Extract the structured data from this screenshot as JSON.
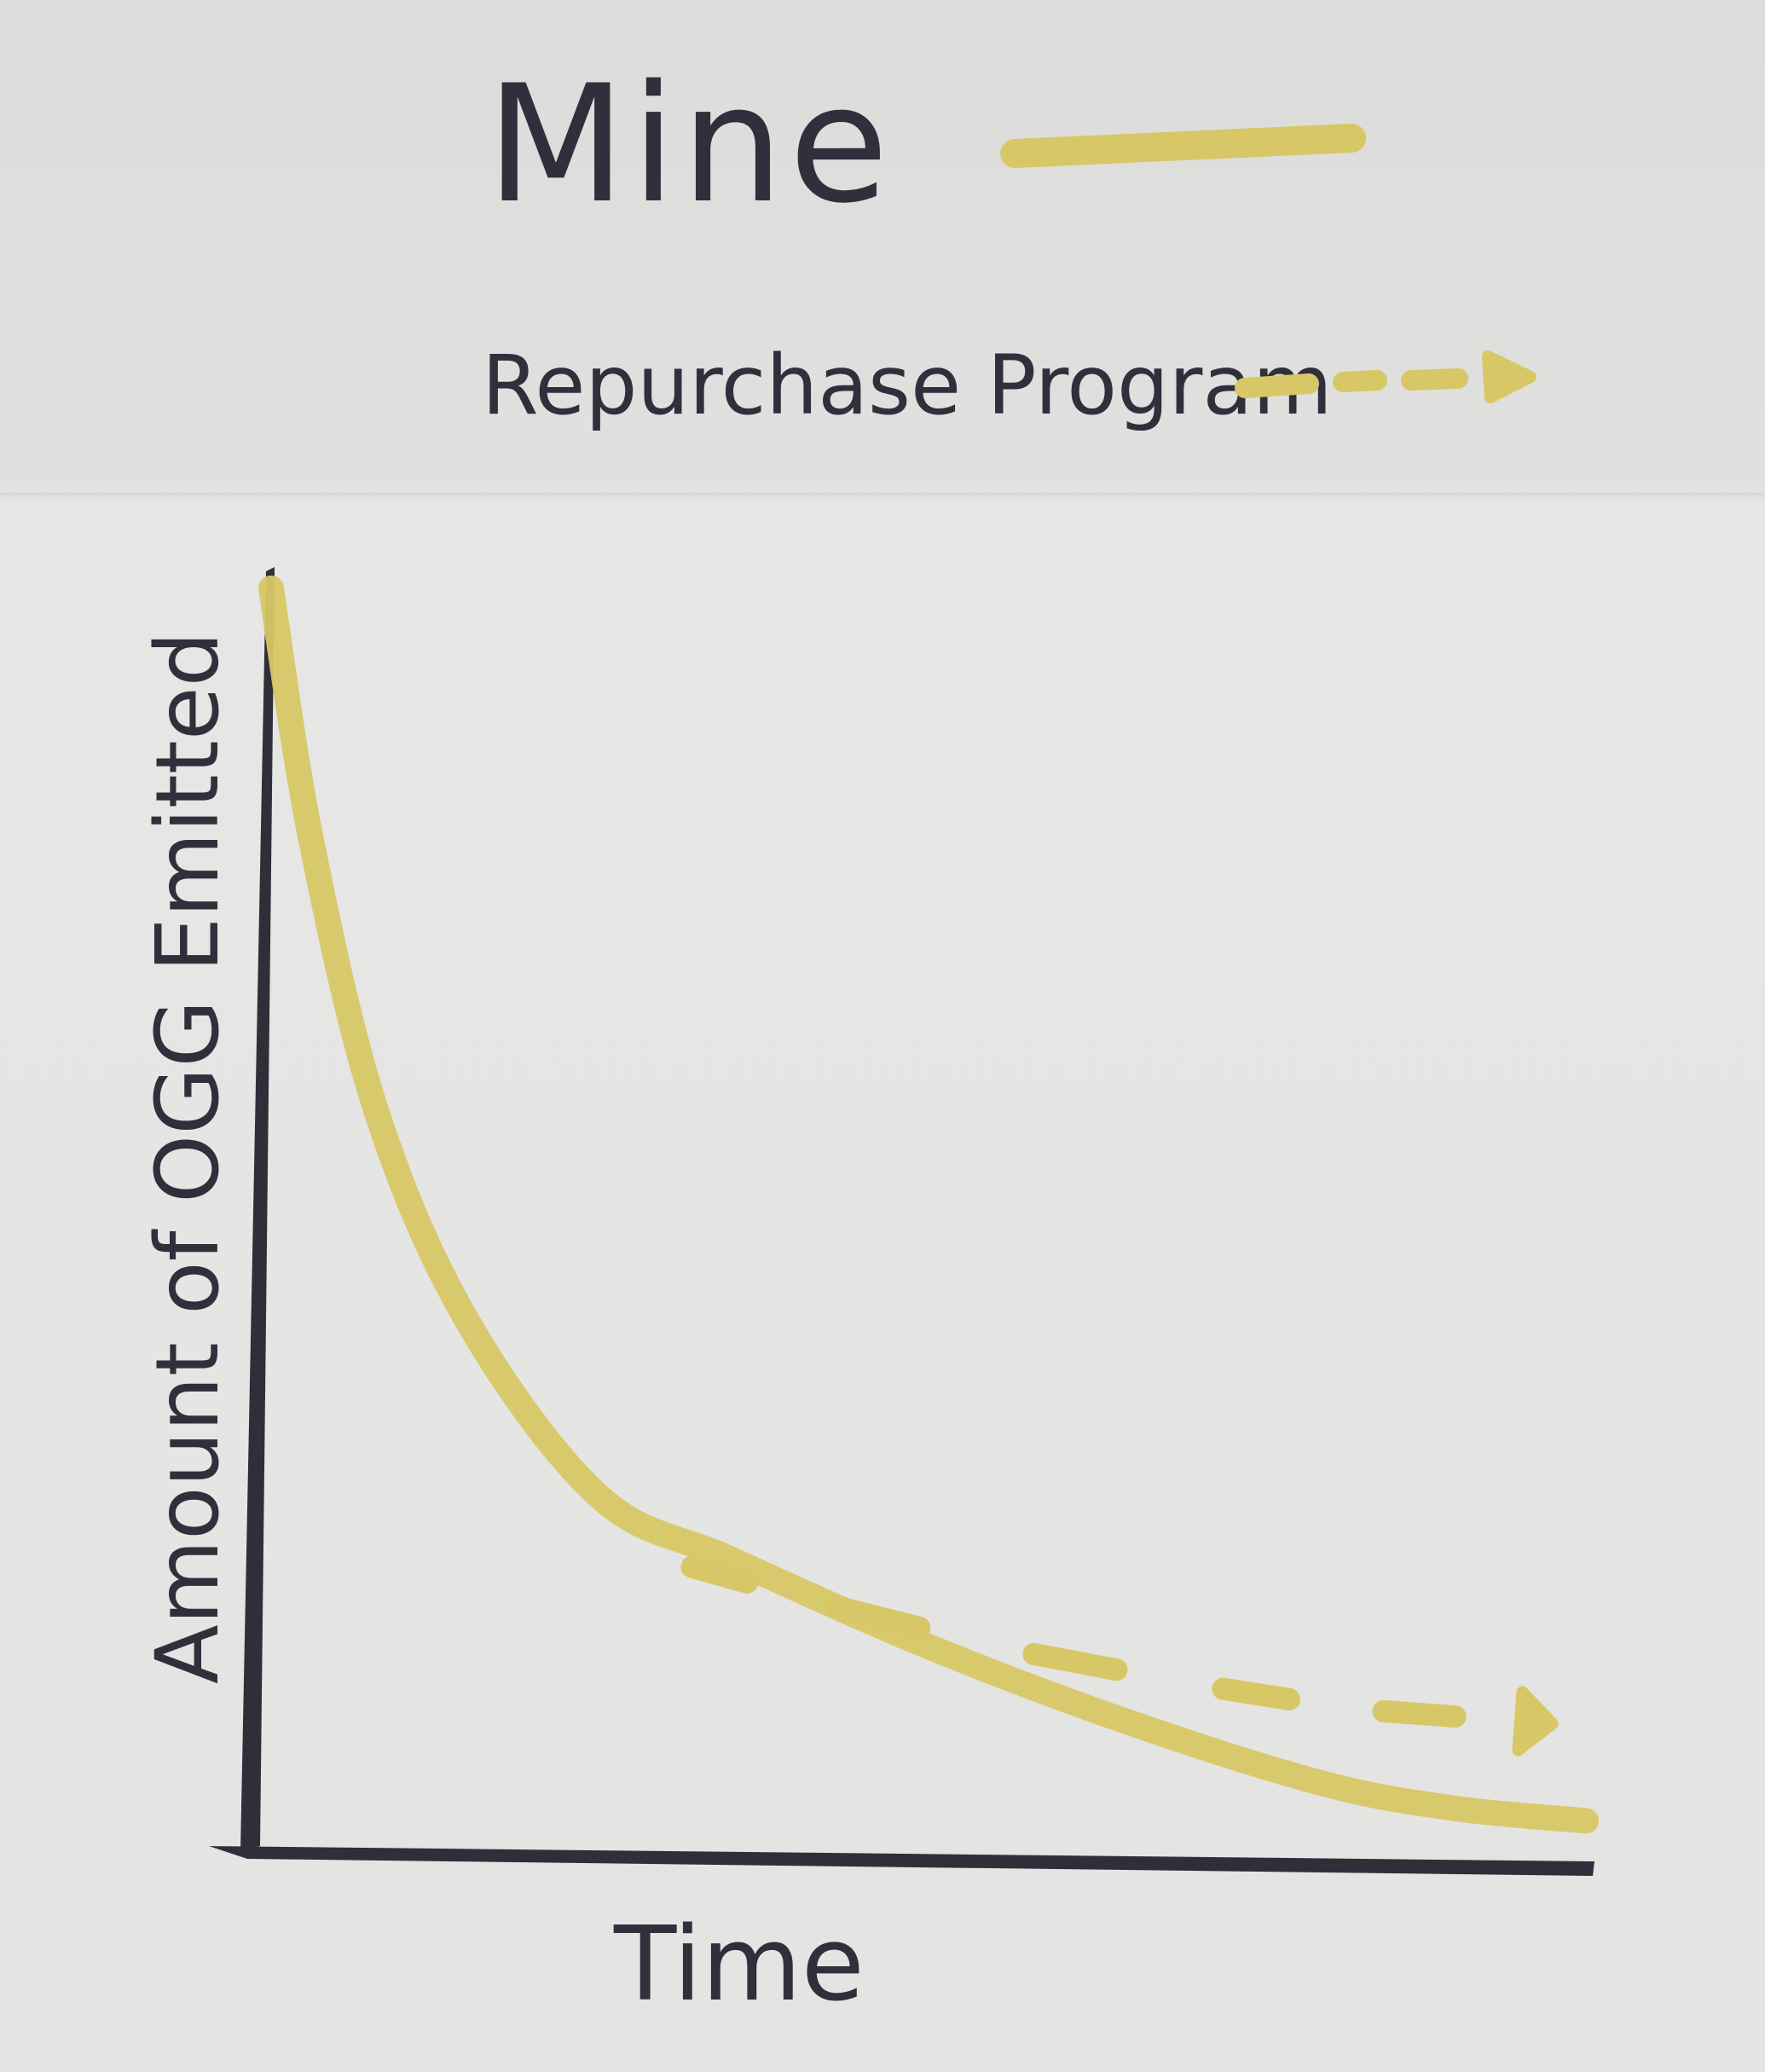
{
  "chart_data": {
    "type": "line",
    "title": "",
    "xlabel": "Time",
    "ylabel": "Amount of OGG Emitted",
    "grid": false,
    "legend_position": "top",
    "series": [
      {
        "name": "Mine",
        "style": "solid",
        "color": "#d8c766",
        "x": [
          0,
          0.03,
          0.08,
          0.15,
          0.25,
          0.35,
          0.5,
          0.65,
          0.8,
          0.9,
          1.0
        ],
        "y": [
          1.0,
          0.8,
          0.58,
          0.41,
          0.27,
          0.22,
          0.15,
          0.09,
          0.04,
          0.02,
          0.01
        ]
      },
      {
        "name": "Repurchase Program",
        "style": "dashed",
        "color": "#d8c766",
        "x": [
          0.3,
          0.4,
          0.55,
          0.7,
          0.82,
          0.95
        ],
        "y": [
          0.22,
          0.19,
          0.15,
          0.12,
          0.1,
          0.09
        ]
      }
    ]
  }
}
